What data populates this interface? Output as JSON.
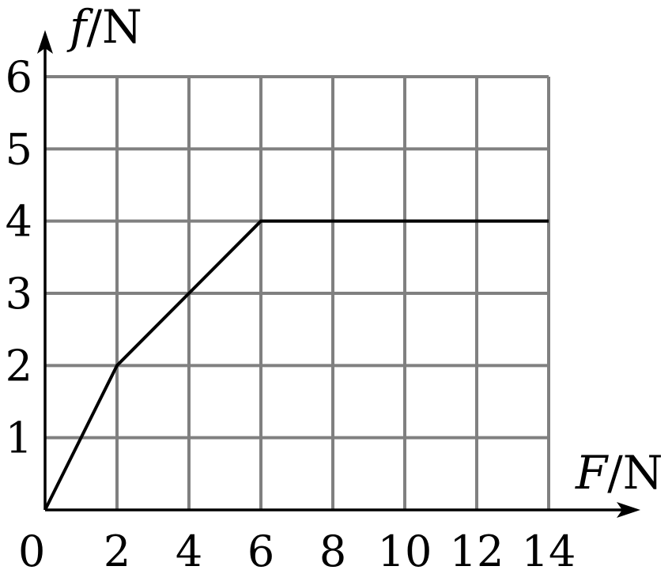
{
  "chart_data": {
    "type": "line",
    "xlabel_var": "F",
    "xlabel_unit": "/N",
    "ylabel_var": "f",
    "ylabel_unit": "/N",
    "xlim": [
      0,
      14
    ],
    "ylim": [
      0,
      6
    ],
    "x_ticks": [
      0,
      2,
      4,
      6,
      8,
      10,
      12,
      14
    ],
    "x_tick_labels": [
      "0",
      "2",
      "4",
      "6",
      "8",
      "10",
      "12",
      "14"
    ],
    "y_ticks": [
      1,
      2,
      3,
      4,
      5,
      6
    ],
    "y_tick_labels": [
      "1",
      "2",
      "3",
      "4",
      "5",
      "6"
    ],
    "grid": true,
    "series": [
      {
        "x": [
          0,
          2,
          6,
          14
        ],
        "y": [
          0,
          2,
          4,
          4
        ]
      }
    ]
  }
}
